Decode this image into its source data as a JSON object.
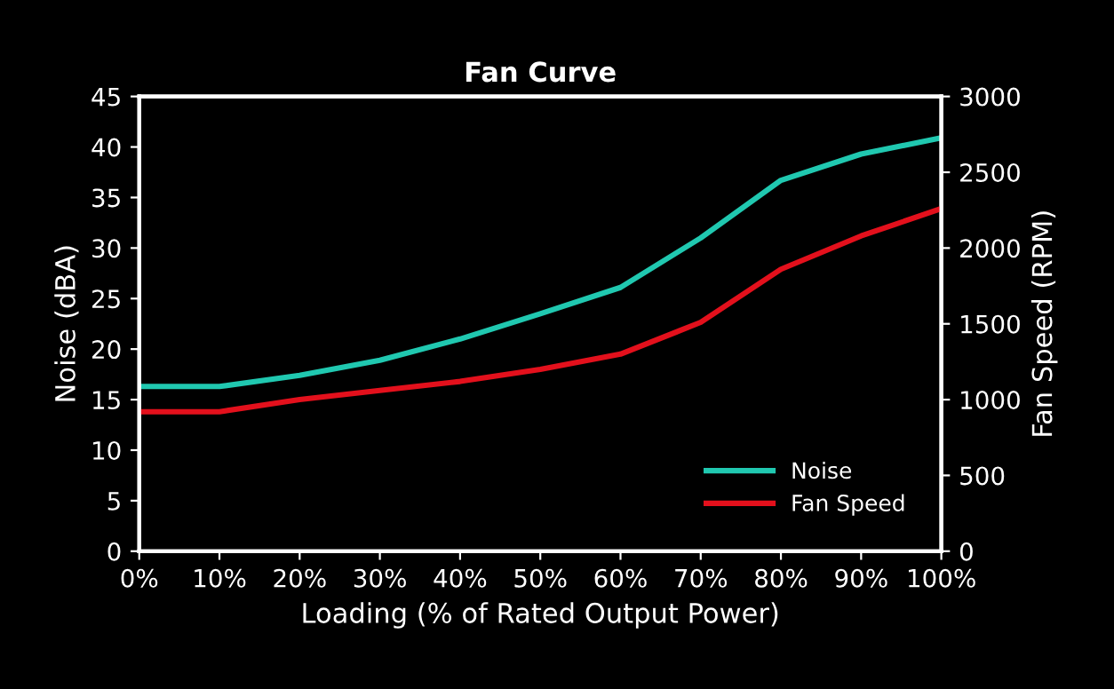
{
  "chart_data": {
    "type": "line",
    "title": "Fan Curve",
    "xlabel": "Loading (% of Rated Output Power)",
    "ylabel": "Noise (dBA)",
    "y2label": "Fan Speed (RPM)",
    "categories": [
      "0%",
      "10%",
      "20%",
      "30%",
      "40%",
      "50%",
      "60%",
      "70%",
      "80%",
      "90%",
      "100%"
    ],
    "series": [
      {
        "name": "Noise",
        "color": "#20c8b0",
        "values": [
          16.3,
          16.3,
          17.4,
          18.9,
          21.0,
          23.5,
          26.1,
          31.0,
          36.7,
          39.3,
          40.9
        ]
      },
      {
        "name": "Fan Speed",
        "color": "#e3101c",
        "axis": "y2",
        "values": [
          920,
          920,
          1000,
          1060,
          1120,
          1200,
          1300,
          1510,
          1860,
          2080,
          2260
        ]
      }
    ],
    "ylim": [
      0,
      45
    ],
    "yticks": [
      0,
      5,
      10,
      15,
      20,
      25,
      30,
      35,
      40,
      45
    ],
    "y2lim": [
      0,
      3000
    ],
    "y2ticks": [
      0,
      500,
      1000,
      1500,
      2000,
      2500,
      3000
    ],
    "grid": false,
    "legend": "bottom right",
    "marker": "none",
    "line_style": "solid"
  }
}
